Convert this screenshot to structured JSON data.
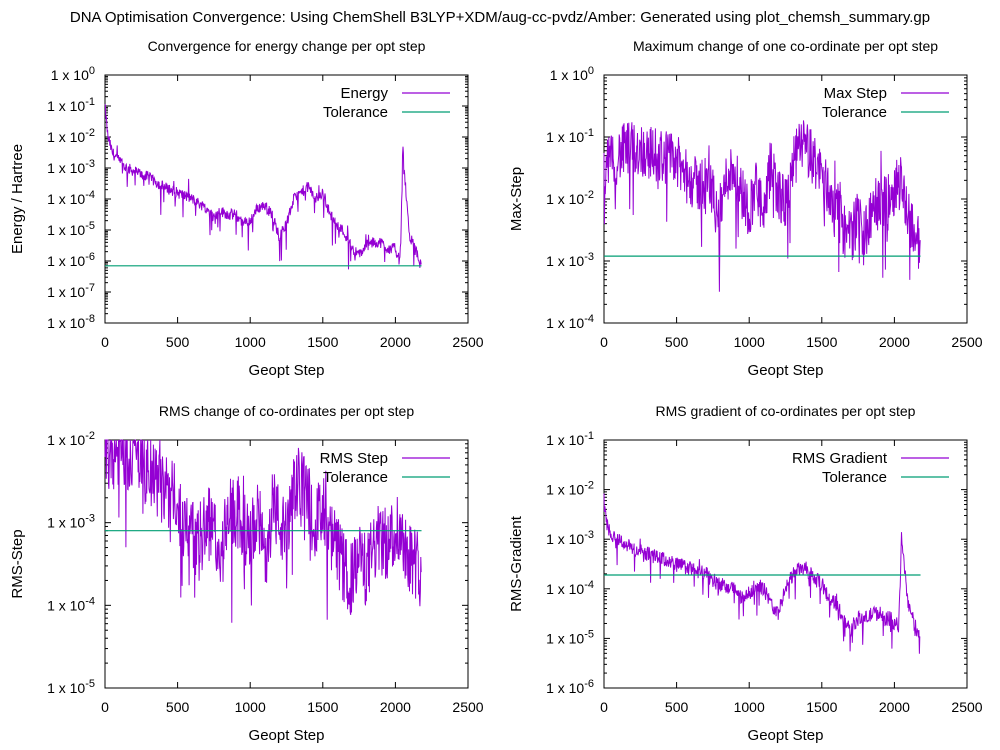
{
  "page": {
    "title": "DNA Optimisation Convergence: Using ChemShell B3LYP+XDM/aug-cc-pvdz/Amber: Generated using plot_chemsh_summary.gp"
  },
  "colors": {
    "series": "#9400d3",
    "tolerance": "#009e73",
    "axes": "#000000"
  },
  "chart_data": [
    {
      "type": "line",
      "title": "Convergence for energy change per opt step",
      "xlabel": "Geopt Step",
      "ylabel": "Energy / Hartree",
      "yscale": "log",
      "xlim": [
        0,
        2500
      ],
      "xticks": [
        "0",
        "500",
        "1000",
        "1500",
        "2000",
        "2500"
      ],
      "ylim_exp": [
        -8,
        0
      ],
      "yticks_exp": [
        -8,
        -7,
        -6,
        -5,
        -4,
        -3,
        -2,
        -1,
        0
      ],
      "ytick_prefix": "1 x 10",
      "legend_position": "top-right",
      "grid": false,
      "series": [
        {
          "name": "Energy",
          "x": [
            0,
            20,
            50,
            100,
            150,
            200,
            250,
            300,
            400,
            500,
            600,
            700,
            750,
            800,
            850,
            900,
            950,
            1000,
            1050,
            1100,
            1150,
            1200,
            1250,
            1300,
            1350,
            1400,
            1450,
            1500,
            1550,
            1600,
            1650,
            1700,
            1750,
            1800,
            1850,
            1900,
            1950,
            2000,
            2030,
            2040,
            2050,
            2060,
            2080,
            2100,
            2150,
            2180
          ],
          "y_log10": [
            -1.0,
            -2.0,
            -2.5,
            -2.8,
            -3.0,
            -3.1,
            -3.2,
            -3.3,
            -3.6,
            -3.8,
            -4.0,
            -4.3,
            -4.6,
            -4.4,
            -4.5,
            -4.5,
            -4.8,
            -4.7,
            -4.3,
            -4.2,
            -4.5,
            -5.2,
            -4.8,
            -4.0,
            -3.8,
            -3.6,
            -4.0,
            -3.8,
            -4.5,
            -4.8,
            -5.1,
            -5.6,
            -5.8,
            -5.5,
            -5.4,
            -5.4,
            -5.6,
            -5.6,
            -6.0,
            -5.0,
            -2.2,
            -3.0,
            -4.3,
            -5.2,
            -5.8,
            -6.2
          ]
        },
        {
          "name": "Tolerance",
          "x": [
            0,
            2180
          ],
          "y": [
            7e-07,
            7e-07
          ]
        }
      ]
    },
    {
      "type": "line",
      "title": "Maximum change of one co-ordinate per opt step",
      "xlabel": "Geopt Step",
      "ylabel": "Max-Step",
      "yscale": "log",
      "xlim": [
        0,
        2500
      ],
      "xticks": [
        "0",
        "500",
        "1000",
        "1500",
        "2000",
        "2500"
      ],
      "ylim_exp": [
        -4,
        0
      ],
      "yticks_exp": [
        -4,
        -3,
        -2,
        -1,
        0
      ],
      "ytick_prefix": "1 x 10",
      "legend_position": "top-right",
      "grid": false,
      "series": [
        {
          "name": "Max Step",
          "x": [
            0,
            50,
            100,
            150,
            200,
            250,
            300,
            400,
            500,
            550,
            600,
            650,
            700,
            750,
            800,
            850,
            900,
            950,
            1000,
            1050,
            1100,
            1150,
            1200,
            1250,
            1300,
            1350,
            1400,
            1450,
            1500,
            1550,
            1600,
            1650,
            1700,
            1750,
            1800,
            1850,
            1900,
            1950,
            2000,
            2050,
            2100,
            2150,
            2180
          ],
          "y_log10": [
            -1.5,
            -1.4,
            -1.3,
            -1.2,
            -1.2,
            -1.2,
            -1.25,
            -1.3,
            -1.4,
            -1.6,
            -1.7,
            -1.8,
            -1.7,
            -1.9,
            -2.2,
            -1.6,
            -1.5,
            -1.9,
            -2.2,
            -1.7,
            -2.4,
            -1.4,
            -1.9,
            -2.1,
            -1.5,
            -1.1,
            -1.2,
            -1.4,
            -1.6,
            -1.9,
            -2.1,
            -2.5,
            -2.6,
            -2.3,
            -2.6,
            -2.2,
            -2.0,
            -2.1,
            -1.8,
            -1.7,
            -2.3,
            -2.6,
            -2.8
          ]
        },
        {
          "name": "Tolerance",
          "x": [
            0,
            2180
          ],
          "y": [
            0.0012,
            0.0012
          ]
        }
      ]
    },
    {
      "type": "line",
      "title": "RMS change of co-ordinates per opt step",
      "xlabel": "Geopt Step",
      "ylabel": "RMS-Step",
      "yscale": "log",
      "xlim": [
        0,
        2500
      ],
      "xticks": [
        "0",
        "500",
        "1000",
        "1500",
        "2000",
        "2500"
      ],
      "ylim_exp": [
        -5,
        -2
      ],
      "yticks_exp": [
        -5,
        -4,
        -3,
        -2
      ],
      "ytick_prefix": "1 x 10",
      "legend_position": "top-right",
      "grid": false,
      "series": [
        {
          "name": "RMS Step",
          "x": [
            0,
            100,
            200,
            250,
            300,
            350,
            400,
            450,
            500,
            550,
            600,
            650,
            700,
            750,
            800,
            850,
            900,
            950,
            1000,
            1050,
            1100,
            1150,
            1200,
            1250,
            1300,
            1350,
            1400,
            1450,
            1500,
            1550,
            1600,
            1650,
            1700,
            1750,
            1800,
            1850,
            1900,
            1950,
            2000,
            2050,
            2100,
            2150,
            2180
          ],
          "y_log10": [
            -2.15,
            -2.15,
            -2.15,
            -2.3,
            -2.4,
            -2.5,
            -2.6,
            -2.65,
            -2.8,
            -3.0,
            -3.1,
            -3.3,
            -2.9,
            -3.1,
            -3.4,
            -2.9,
            -2.9,
            -3.0,
            -3.3,
            -2.8,
            -3.5,
            -2.7,
            -3.0,
            -3.2,
            -2.6,
            -2.5,
            -2.7,
            -2.9,
            -3.0,
            -3.2,
            -3.3,
            -3.6,
            -3.7,
            -3.4,
            -3.6,
            -3.3,
            -3.2,
            -3.3,
            -3.0,
            -3.2,
            -3.4,
            -3.5,
            -3.6
          ]
        },
        {
          "name": "Tolerance",
          "x": [
            0,
            2180
          ],
          "y": [
            0.0008,
            0.0008
          ]
        }
      ]
    },
    {
      "type": "line",
      "title": "RMS gradient of co-ordinates per opt step",
      "xlabel": "Geopt Step",
      "ylabel": "RMS-Gradient",
      "yscale": "log",
      "xlim": [
        0,
        2500
      ],
      "xticks": [
        "0",
        "500",
        "1000",
        "1500",
        "2000",
        "2500"
      ],
      "ylim_exp": [
        -6,
        -1
      ],
      "yticks_exp": [
        -6,
        -5,
        -4,
        -3,
        -2,
        -1
      ],
      "ytick_prefix": "1 x 10",
      "legend_position": "top-right",
      "grid": false,
      "series": [
        {
          "name": "RMS Gradient",
          "x": [
            0,
            20,
            50,
            100,
            200,
            300,
            400,
            500,
            600,
            700,
            800,
            850,
            900,
            950,
            1000,
            1050,
            1100,
            1150,
            1200,
            1250,
            1300,
            1350,
            1400,
            1450,
            1500,
            1550,
            1600,
            1650,
            1700,
            1750,
            1800,
            1850,
            1900,
            1950,
            2000,
            2030,
            2050,
            2060,
            2080,
            2100,
            2150,
            2180
          ],
          "y_log10": [
            -2.0,
            -2.7,
            -2.9,
            -3.0,
            -3.2,
            -3.3,
            -3.4,
            -3.5,
            -3.6,
            -3.7,
            -3.9,
            -4.0,
            -4.0,
            -4.2,
            -4.1,
            -3.9,
            -4.0,
            -4.3,
            -4.5,
            -4.0,
            -3.7,
            -3.6,
            -3.6,
            -3.8,
            -3.9,
            -4.2,
            -4.3,
            -4.6,
            -4.8,
            -4.6,
            -4.6,
            -4.5,
            -4.5,
            -4.6,
            -4.6,
            -4.8,
            -2.9,
            -3.3,
            -3.9,
            -4.4,
            -4.8,
            -4.9
          ]
        },
        {
          "name": "Tolerance",
          "x": [
            0,
            2180
          ],
          "y": [
            0.00019,
            0.00019
          ]
        }
      ]
    }
  ]
}
